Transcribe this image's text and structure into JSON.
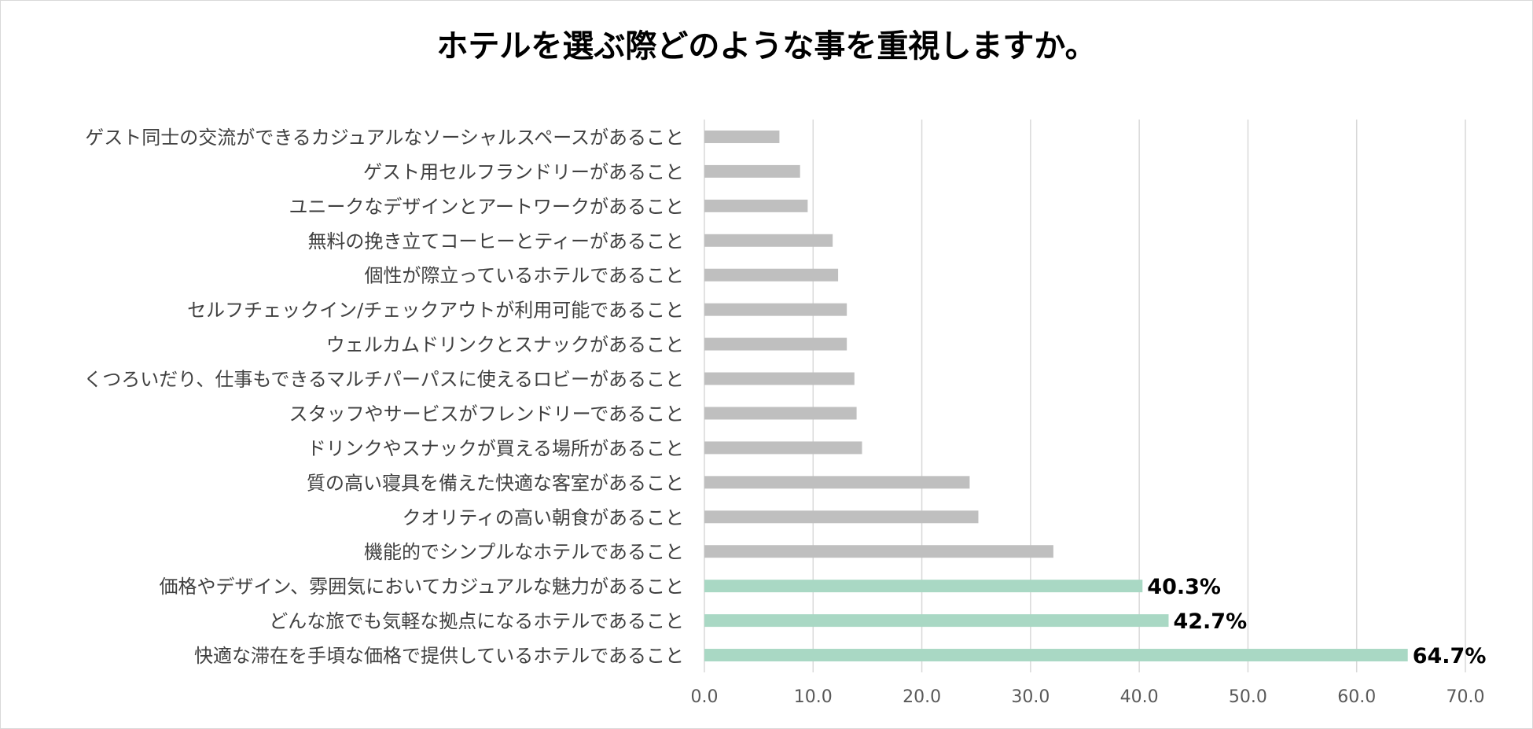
{
  "chart_data": {
    "type": "bar",
    "orientation": "horizontal",
    "title": "ホテルを選ぶ際どのような事を重視しますか。",
    "xlabel": "",
    "ylabel": "",
    "xlim": [
      0,
      70
    ],
    "xticks": [
      "0.0",
      "10.0",
      "20.0",
      "30.0",
      "40.0",
      "50.0",
      "60.0",
      "70.0"
    ],
    "grid": "vertical",
    "legend": "none",
    "categories": [
      "ゲスト同士の交流ができるカジュアルなソーシャルスペースがあること",
      "ゲスト用セルフランドリーがあること",
      "ユニークなデザインとアートワークがあること",
      "無料の挽き立てコーヒーとティーがあること",
      "個性が際立っているホテルであること",
      "セルフチェックイン/チェックアウトが利用可能であること",
      "ウェルカムドリンクとスナックがあること",
      "くつろいだり、仕事もできるマルチパーパスに使えるロビーがあること",
      "スタッフやサービスがフレンドリーであること",
      "ドリンクやスナックが買える場所があること",
      "質の高い寝具を備えた快適な客室があること",
      "クオリティの高い朝食があること",
      "機能的でシンプルなホテルであること",
      "価格やデザイン、雰囲気においてカジュアルな魅力があること",
      "どんな旅でも気軽な拠点になるホテルであること",
      "快適な滞在を手頃な価格で提供しているホテルであること"
    ],
    "values": [
      6.9,
      8.8,
      9.5,
      11.8,
      12.3,
      13.1,
      13.1,
      13.8,
      14.0,
      14.5,
      24.4,
      25.2,
      32.1,
      40.3,
      42.7,
      64.7
    ],
    "highlight": [
      false,
      false,
      false,
      false,
      false,
      false,
      false,
      false,
      false,
      false,
      false,
      false,
      false,
      true,
      true,
      true
    ],
    "data_labels": [
      "",
      "",
      "",
      "",
      "",
      "",
      "",
      "",
      "",
      "",
      "",
      "",
      "",
      "40.3%",
      "42.7%",
      "64.7%"
    ],
    "colors": {
      "default": "#bfbfbf",
      "highlight": "#a9d8c4",
      "grid": "#d9d9d9"
    }
  }
}
